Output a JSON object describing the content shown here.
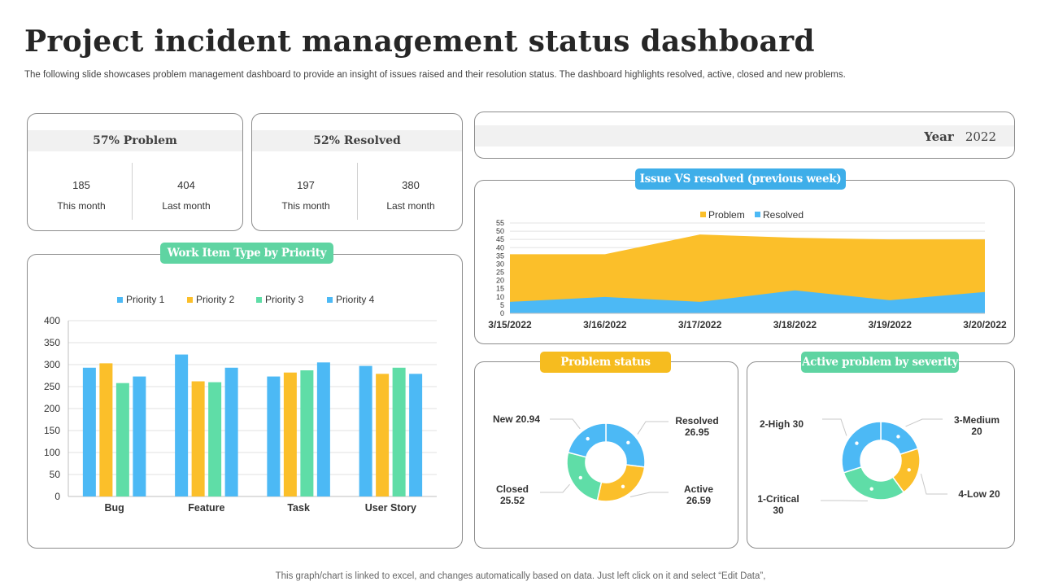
{
  "header": {
    "title": "Project incident management status dashboard",
    "subtitle": "The following slide showcases problem management dashboard to provide an insight of issues raised and their resolution status. The dashboard highlights resolved, active, closed and new problems."
  },
  "footer": {
    "text": "This graph/chart is linked to excel,  and changes automatically based on data. Just left click on it and select “Edit Data”,"
  },
  "kpis": [
    {
      "title": "57% Problem",
      "this_month": "185",
      "this_label": "This month",
      "last_month": "404",
      "last_label": "Last month"
    },
    {
      "title": "52% Resolved",
      "this_month": "197",
      "this_label": "This month",
      "last_month": "380",
      "last_label": "Last month"
    }
  ],
  "year": {
    "label": "Year",
    "value": "2022"
  },
  "colors": {
    "blue": "#4cb9f5",
    "yellow": "#fbbf2a",
    "green": "#5fdda7",
    "pill_blue": "#3eaee9",
    "pill_yellow": "#f6bc1f",
    "pill_green": "#5fd4a2"
  },
  "chart_data": [
    {
      "type": "bar",
      "title": "Work Item Type by Priority",
      "categories": [
        "Bug",
        "Feature",
        "Task",
        "User Story"
      ],
      "series": [
        {
          "name": "Priority 1",
          "color": "#4cb9f5",
          "values": [
            293,
            323,
            273,
            297
          ]
        },
        {
          "name": "Priority 2",
          "color": "#fbbf2a",
          "values": [
            303,
            262,
            282,
            279
          ]
        },
        {
          "name": "Priority 3",
          "color": "#5fdda7",
          "values": [
            258,
            260,
            287,
            293
          ]
        },
        {
          "name": "Priority 4",
          "color": "#4cb9f5",
          "values": [
            273,
            293,
            305,
            279
          ]
        }
      ],
      "ylim": [
        0,
        400
      ],
      "yticks": [
        "0",
        "50",
        "100",
        "150",
        "200",
        "250",
        "300",
        "350",
        "400"
      ],
      "ytick_values": [
        0,
        50,
        100,
        150,
        200,
        250,
        300,
        350,
        400
      ]
    },
    {
      "type": "area",
      "title": "Issue VS resolved (previous week)",
      "categories": [
        "3/15/2022",
        "3/16/2022",
        "3/17/2022",
        "3/18/2022",
        "3/19/2022",
        "3/20/2022"
      ],
      "series": [
        {
          "name": "Problem",
          "color": "#fbbf2a",
          "values": [
            36,
            36,
            48,
            46,
            45,
            45
          ]
        },
        {
          "name": "Resolved",
          "color": "#4cb9f5",
          "values": [
            7,
            10,
            7,
            14,
            8,
            13
          ]
        }
      ],
      "ylim": [
        0,
        55
      ],
      "yticks": [
        "0",
        "5",
        "10",
        "15",
        "20",
        "25",
        "30",
        "35",
        "40",
        "45",
        "50",
        "55"
      ],
      "ytick_values": [
        0,
        5,
        10,
        15,
        20,
        25,
        30,
        35,
        40,
        45,
        50,
        55
      ]
    },
    {
      "type": "pie",
      "title": "Problem status",
      "slices": [
        {
          "name": "Resolved",
          "value": 26.95,
          "color": "#4cb9f5",
          "label_lines": [
            "Resolved",
            "26.95"
          ]
        },
        {
          "name": "Active",
          "value": 26.59,
          "color": "#fbbf2a",
          "label_lines": [
            "Active",
            "26.59"
          ]
        },
        {
          "name": "Closed",
          "value": 25.52,
          "color": "#5fdda7",
          "label_lines": [
            "Closed",
            "25.52"
          ]
        },
        {
          "name": "New",
          "value": 20.94,
          "color": "#4cb9f5",
          "label_lines": [
            "New 20.94"
          ]
        }
      ]
    },
    {
      "type": "pie",
      "title": "Active problem by severity",
      "slices": [
        {
          "name": "3-Medium",
          "value": 20,
          "color": "#4cb9f5",
          "label_lines": [
            "3-Medium",
            "20"
          ]
        },
        {
          "name": "4-Low",
          "value": 20,
          "color": "#fbbf2a",
          "label_lines": [
            "4-Low 20"
          ]
        },
        {
          "name": "1-Critical",
          "value": 30,
          "color": "#5fdda7",
          "label_lines": [
            "1-Critical",
            "30"
          ]
        },
        {
          "name": "2-High",
          "value": 30,
          "color": "#4cb9f5",
          "label_lines": [
            "2-High  30"
          ]
        }
      ]
    }
  ]
}
